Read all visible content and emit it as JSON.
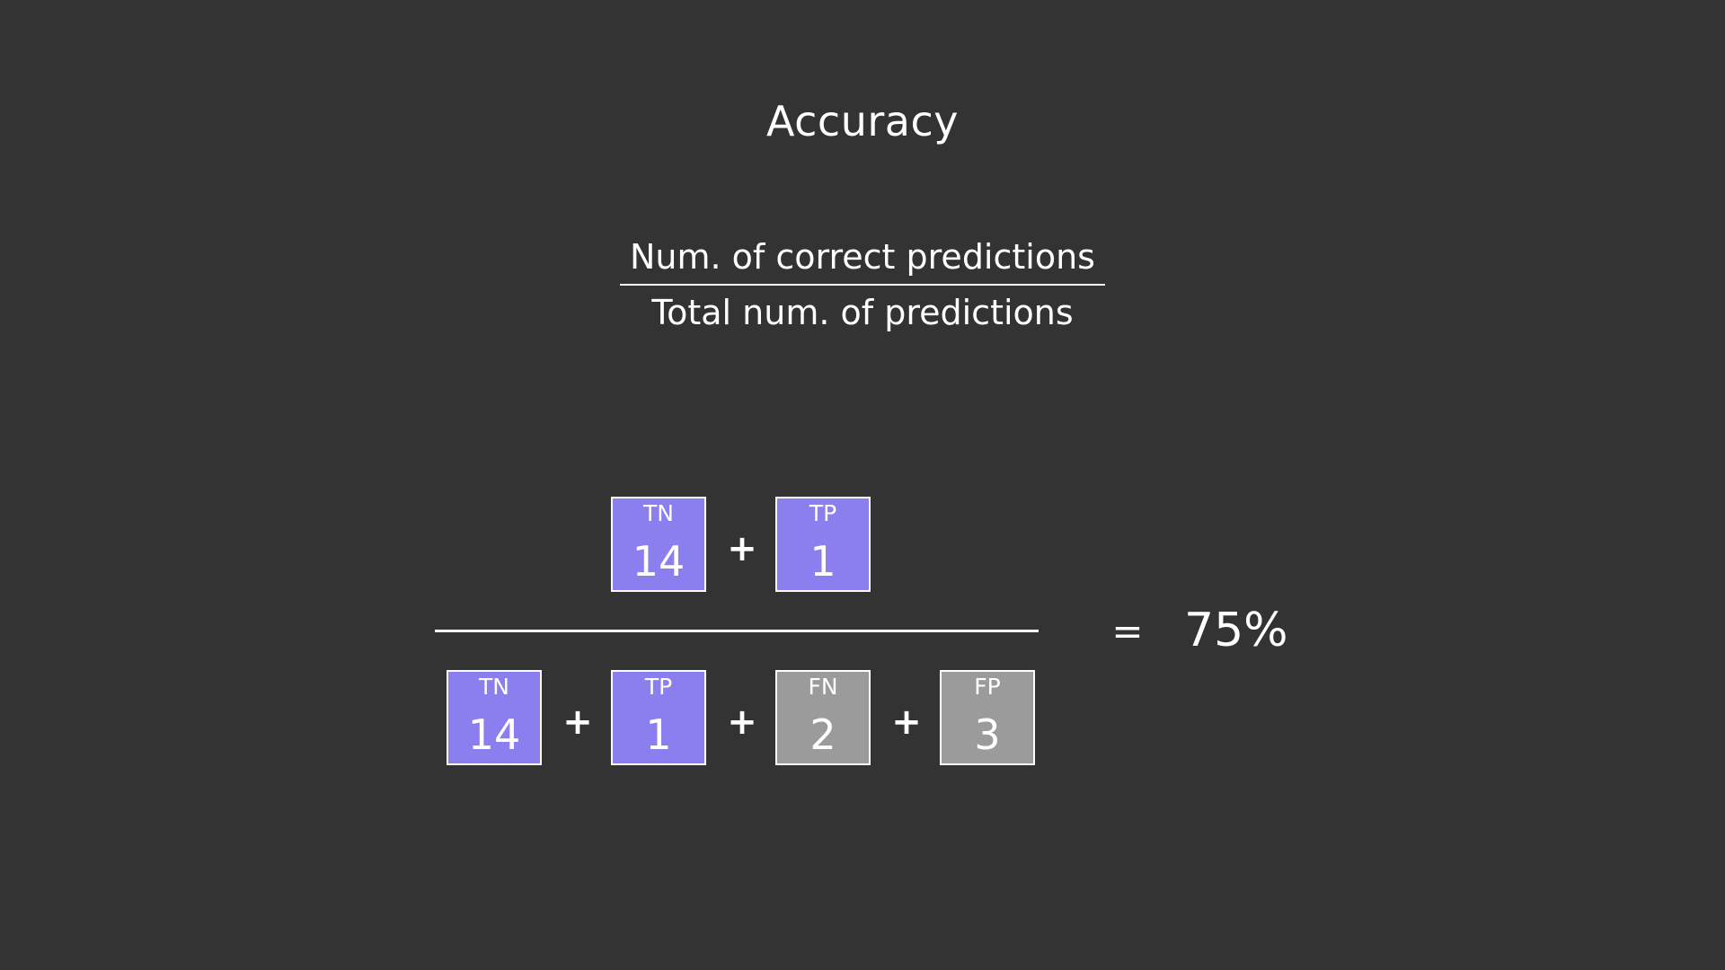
{
  "title": "Accuracy",
  "formula": {
    "numerator": "Num. of correct predictions",
    "denominator": "Total num. of predictions"
  },
  "numerator_terms": [
    {
      "label": "TN",
      "value": "14",
      "color": "#8b7ff0"
    },
    {
      "label": "TP",
      "value": "1",
      "color": "#8b7ff0"
    }
  ],
  "denominator_terms": [
    {
      "label": "TN",
      "value": "14",
      "color": "#8b7ff0"
    },
    {
      "label": "TP",
      "value": "1",
      "color": "#8b7ff0"
    },
    {
      "label": "FN",
      "value": "2",
      "color": "#9b9b9b"
    },
    {
      "label": "FP",
      "value": "3",
      "color": "#9b9b9b"
    }
  ],
  "operators": {
    "plus": "+",
    "equals": "="
  },
  "result": "75%",
  "colors": {
    "background": "#333333",
    "correct": "#8b7ff0",
    "incorrect": "#9b9b9b",
    "text": "#ffffff"
  }
}
